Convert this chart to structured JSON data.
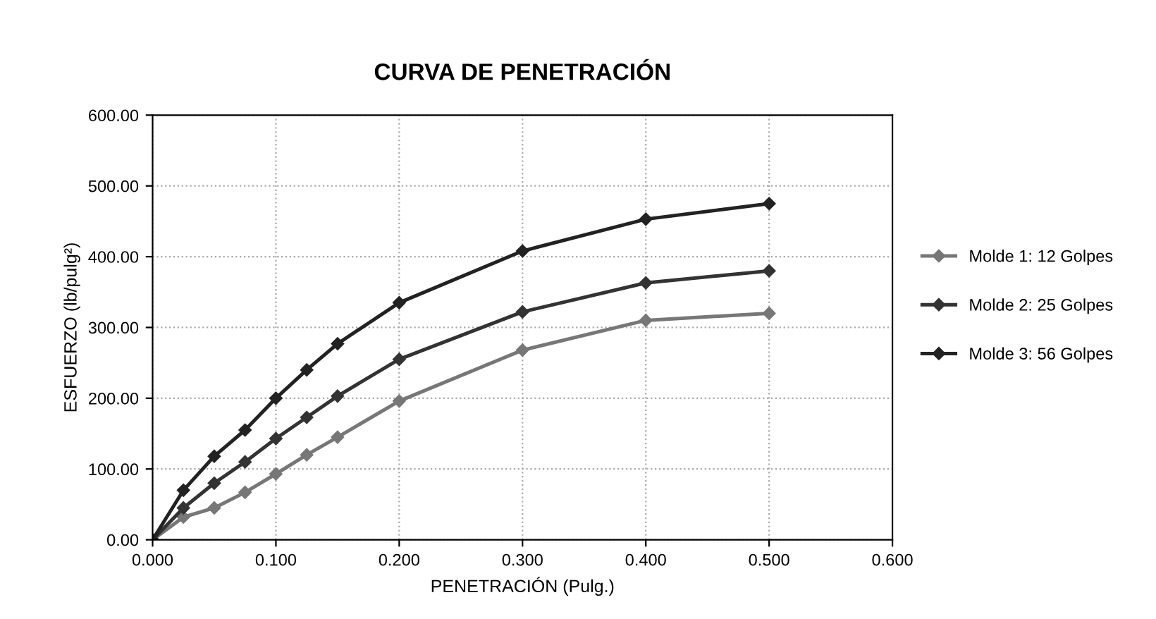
{
  "chart_data": {
    "type": "line",
    "title": "CURVA DE PENETRACIÓN",
    "xlabel": "PENETRACIÓN (Pulg.)",
    "ylabel": "ESFUERZO (lb/pulg²)",
    "x": [
      0,
      0.025,
      0.05,
      0.075,
      0.1,
      0.125,
      0.15,
      0.2,
      0.3,
      0.4,
      0.5
    ],
    "series": [
      {
        "name": "Molde 1: 12 Golpes",
        "color": "#777777",
        "values": [
          0,
          32,
          45,
          67,
          93,
          120,
          145,
          196,
          268,
          310,
          320
        ]
      },
      {
        "name": "Molde 2: 25 Golpes",
        "color": "#333333",
        "values": [
          0,
          45,
          80,
          110,
          143,
          173,
          203,
          255,
          322,
          363,
          380
        ]
      },
      {
        "name": "Molde 3: 56 Golpes",
        "color": "#222222",
        "values": [
          0,
          70,
          118,
          155,
          200,
          240,
          277,
          335,
          408,
          453,
          475
        ]
      }
    ],
    "xlim": [
      0,
      0.6
    ],
    "xticks": [
      {
        "value": 0,
        "label": "0.000"
      },
      {
        "value": 0.1,
        "label": "0.100"
      },
      {
        "value": 0.2,
        "label": "0.200"
      },
      {
        "value": 0.3,
        "label": "0.300"
      },
      {
        "value": 0.4,
        "label": "0.400"
      },
      {
        "value": 0.5,
        "label": "0.500"
      },
      {
        "value": 0.6,
        "label": "0.600"
      }
    ],
    "ylim": [
      0,
      600
    ],
    "yticks": [
      {
        "value": 0,
        "label": "0.00"
      },
      {
        "value": 100,
        "label": "100.00"
      },
      {
        "value": 200,
        "label": "200.00"
      },
      {
        "value": 300,
        "label": "300.00"
      },
      {
        "value": 400,
        "label": "400.00"
      },
      {
        "value": 500,
        "label": "500.00"
      },
      {
        "value": 600,
        "label": "600.00"
      }
    ],
    "grid": true,
    "legend": "right",
    "marker": "diamond",
    "line_style": "solid"
  }
}
